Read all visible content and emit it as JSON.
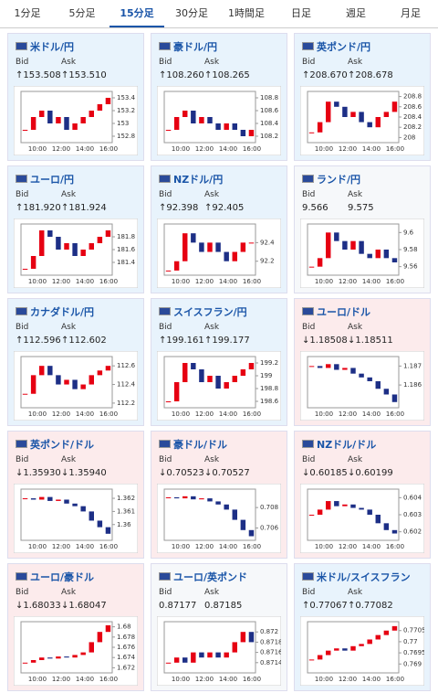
{
  "tabs": {
    "items": [
      "1分足",
      "5分足",
      "15分足",
      "30分足",
      "1時間足",
      "日足",
      "週足",
      "月足"
    ],
    "active": 2
  },
  "bid_label": "Bid",
  "ask_label": "Ask",
  "xlabels": [
    "10:00",
    "12:00",
    "14:00",
    "16:00"
  ],
  "up_color": "#e60012",
  "down_color": "#1d2f86",
  "cards": [
    {
      "name": "米ドル/円",
      "bid": "↑153.508",
      "ask": "↑153.510",
      "tone": "up",
      "ylim": [
        152.7,
        153.5
      ],
      "yticks": [
        153.4,
        153.2,
        153,
        152.8
      ],
      "closes": [
        152.9,
        153.1,
        153.2,
        153.0,
        153.1,
        152.9,
        153.0,
        153.1,
        153.2,
        153.3,
        153.4
      ]
    },
    {
      "name": "豪ドル/円",
      "bid": "↑108.260",
      "ask": "↑108.265",
      "tone": "up",
      "ylim": [
        108.1,
        108.9
      ],
      "yticks": [
        108.8,
        108.6,
        108.4,
        108.2
      ],
      "closes": [
        108.3,
        108.5,
        108.6,
        108.4,
        108.5,
        108.4,
        108.3,
        108.4,
        108.3,
        108.2,
        108.3
      ]
    },
    {
      "name": "英ポンド/円",
      "bid": "↑208.670",
      "ask": "↑208.678",
      "tone": "up",
      "ylim": [
        207.9,
        208.9
      ],
      "yticks": [
        208.8,
        208.6,
        208.4,
        208.2,
        208
      ],
      "closes": [
        208.1,
        208.3,
        208.7,
        208.6,
        208.4,
        208.5,
        208.3,
        208.2,
        208.4,
        208.5,
        208.7
      ]
    },
    {
      "name": "ユーロ/円",
      "bid": "↑181.920",
      "ask": "↑181.924",
      "tone": "up",
      "ylim": [
        181.2,
        182.0
      ],
      "yticks": [
        181.8,
        181.6,
        181.4
      ],
      "closes": [
        181.3,
        181.5,
        181.9,
        181.8,
        181.6,
        181.7,
        181.5,
        181.6,
        181.7,
        181.8,
        181.9
      ]
    },
    {
      "name": "NZドル/円",
      "bid": "↑92.398",
      "ask": "↑92.405",
      "tone": "up",
      "ylim": [
        92.05,
        92.6
      ],
      "yticks": [
        92.4,
        92.2
      ],
      "closes": [
        92.1,
        92.2,
        92.5,
        92.4,
        92.3,
        92.4,
        92.3,
        92.2,
        92.3,
        92.4,
        92.4
      ]
    },
    {
      "name": "ランド/円",
      "bid": "9.566",
      "ask": "9.575",
      "tone": "flat",
      "ylim": [
        9.55,
        9.61
      ],
      "yticks": [
        9.6,
        9.58,
        9.56
      ],
      "closes": [
        9.56,
        9.57,
        9.6,
        9.59,
        9.58,
        9.59,
        9.575,
        9.57,
        9.58,
        9.57,
        9.565
      ]
    },
    {
      "name": "カナダドル/円",
      "bid": "↑112.596",
      "ask": "↑112.602",
      "tone": "up",
      "ylim": [
        112.15,
        112.7
      ],
      "yticks": [
        112.6,
        112.4,
        112.2
      ],
      "closes": [
        112.3,
        112.5,
        112.6,
        112.5,
        112.4,
        112.45,
        112.35,
        112.4,
        112.5,
        112.55,
        112.6
      ]
    },
    {
      "name": "スイスフラン/円",
      "bid": "↑199.161",
      "ask": "↑199.177",
      "tone": "up",
      "ylim": [
        198.5,
        199.3
      ],
      "yticks": [
        199.2,
        199,
        198.8,
        198.6
      ],
      "closes": [
        198.6,
        198.9,
        199.2,
        199.1,
        198.9,
        199.0,
        198.8,
        198.9,
        199.0,
        199.1,
        199.2
      ]
    },
    {
      "name": "ユーロ/ドル",
      "bid": "↓1.18508",
      "ask": "↓1.18511",
      "tone": "down",
      "ylim": [
        1.1848,
        1.1875
      ],
      "yticks": [
        1.187,
        1.186
      ],
      "closes": [
        1.187,
        1.1869,
        1.1871,
        1.1868,
        1.1869,
        1.1866,
        1.1864,
        1.1862,
        1.1858,
        1.1855,
        1.1851
      ]
    },
    {
      "name": "英ポンド/ドル",
      "bid": "↓1.35930",
      "ask": "↓1.35940",
      "tone": "down",
      "ylim": [
        1.3588,
        1.3627
      ],
      "yticks": [
        1.362,
        1.361,
        1.36
      ],
      "closes": [
        1.362,
        1.3619,
        1.3621,
        1.3618,
        1.3619,
        1.3616,
        1.3614,
        1.361,
        1.3603,
        1.3598,
        1.3593
      ]
    },
    {
      "name": "豪ドル/ドル",
      "bid": "↓0.70523",
      "ask": "↓0.70527",
      "tone": "down",
      "ylim": [
        0.7048,
        0.7098
      ],
      "yticks": [
        0.708,
        0.706
      ],
      "closes": [
        0.709,
        0.7089,
        0.7091,
        0.7088,
        0.7089,
        0.7086,
        0.7083,
        0.7078,
        0.7068,
        0.7058,
        0.7052
      ]
    },
    {
      "name": "NZドル/ドル",
      "bid": "↓0.60185",
      "ask": "↓0.60199",
      "tone": "down",
      "ylim": [
        0.6015,
        0.6045
      ],
      "yticks": [
        0.604,
        0.603,
        0.602
      ],
      "closes": [
        0.603,
        0.6033,
        0.6038,
        0.6035,
        0.6036,
        0.6034,
        0.6033,
        0.603,
        0.6025,
        0.6021,
        0.6019
      ]
    },
    {
      "name": "ユーロ/豪ドル",
      "bid": "↓1.68033",
      "ask": "↓1.68047",
      "tone": "down",
      "ylim": [
        1.671,
        1.681
      ],
      "yticks": [
        1.68,
        1.678,
        1.676,
        1.674,
        1.672
      ],
      "closes": [
        1.673,
        1.6735,
        1.674,
        1.6738,
        1.6742,
        1.674,
        1.6745,
        1.675,
        1.677,
        1.679,
        1.6803
      ]
    },
    {
      "name": "ユーロ/英ポンド",
      "bid": "0.87177",
      "ask": "0.87185",
      "tone": "flat",
      "ylim": [
        0.8712,
        0.8722
      ],
      "yticks": [
        0.872,
        0.8718,
        0.8716,
        0.8714
      ],
      "closes": [
        0.8714,
        0.8715,
        0.8714,
        0.8716,
        0.8715,
        0.8716,
        0.8715,
        0.8716,
        0.8718,
        0.872,
        0.8718
      ]
    },
    {
      "name": "米ドル/スイスフラン",
      "bid": "↑0.77067",
      "ask": "↑0.77082",
      "tone": "up",
      "ylim": [
        0.7686,
        0.7709
      ],
      "yticks": [
        0.7705,
        0.77,
        0.7695,
        0.769
      ],
      "closes": [
        0.7692,
        0.7694,
        0.7696,
        0.7697,
        0.7696,
        0.7698,
        0.7699,
        0.7701,
        0.7703,
        0.7705,
        0.7707
      ]
    }
  ]
}
